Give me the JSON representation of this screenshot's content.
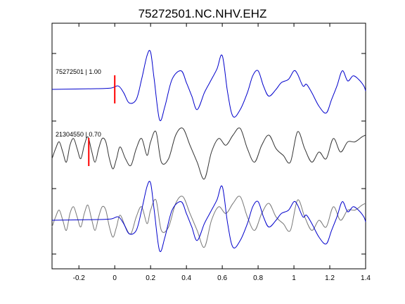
{
  "chart_data": {
    "type": "line",
    "title": "75272501.NC.NHV.EHZ",
    "xlabel": "",
    "ylabel": "",
    "xlim": [
      -0.35,
      1.4
    ],
    "xticks": [
      -0.2,
      0,
      0.2,
      0.4,
      0.6,
      0.8,
      1,
      1.2,
      1.4
    ],
    "xtick_labels": [
      "-0.2",
      "0",
      "0.2",
      "0.4",
      "0.6",
      "0.8",
      "1",
      "1.2",
      "1.4"
    ],
    "grid": false,
    "traces": [
      {
        "label": "75272501 | 1.00",
        "color": "#0000cc",
        "pick_time": 0.0,
        "pick_color": "#ff0000",
        "t": [
          -0.35,
          -0.1,
          -0.02,
          0.02,
          0.05,
          0.08,
          0.12,
          0.15,
          0.18,
          0.2,
          0.22,
          0.25,
          0.28,
          0.32,
          0.37,
          0.4,
          0.43,
          0.46,
          0.5,
          0.53,
          0.57,
          0.6,
          0.63,
          0.66,
          0.7,
          0.74,
          0.77,
          0.8,
          0.83,
          0.86,
          0.9,
          0.93,
          0.97,
          1.0,
          1.02,
          1.05,
          1.07,
          1.1,
          1.14,
          1.18,
          1.21,
          1.24,
          1.27,
          1.3,
          1.33,
          1.36,
          1.39,
          1.4
        ],
        "y": [
          0.0,
          0.02,
          0.04,
          0.1,
          -0.1,
          -0.4,
          -0.3,
          0.3,
          1.0,
          1.1,
          0.3,
          -0.9,
          -0.5,
          0.3,
          0.55,
          0.2,
          -0.2,
          -0.6,
          -0.1,
          0.2,
          0.6,
          1.0,
          -0.1,
          -0.8,
          -0.6,
          -0.1,
          0.4,
          0.55,
          0.1,
          -0.2,
          0.0,
          0.2,
          0.3,
          0.55,
          0.45,
          0.1,
          0.15,
          -0.1,
          -0.5,
          -0.7,
          -0.3,
          0.1,
          0.55,
          0.25,
          0.4,
          0.3,
          0.1,
          -0.05
        ]
      },
      {
        "label": "21304550 | 0.70",
        "color": "#333333",
        "pick_time": -0.145,
        "pick_color": "#ff0000",
        "t": [
          -0.35,
          -0.33,
          -0.31,
          -0.29,
          -0.27,
          -0.25,
          -0.23,
          -0.21,
          -0.19,
          -0.17,
          -0.15,
          -0.13,
          -0.11,
          -0.09,
          -0.07,
          -0.05,
          -0.03,
          -0.01,
          0.01,
          0.03,
          0.06,
          0.09,
          0.12,
          0.15,
          0.18,
          0.2,
          0.23,
          0.26,
          0.3,
          0.34,
          0.38,
          0.42,
          0.46,
          0.5,
          0.54,
          0.58,
          0.62,
          0.66,
          0.7,
          0.74,
          0.78,
          0.82,
          0.86,
          0.9,
          0.94,
          0.98,
          1.02,
          1.06,
          1.1,
          1.14,
          1.18,
          1.22,
          1.26,
          1.3,
          1.34,
          1.38,
          1.4
        ],
        "y": [
          -0.2,
          0.1,
          0.3,
          0.0,
          -0.3,
          0.2,
          0.4,
          0.1,
          -0.2,
          0.2,
          0.45,
          0.05,
          -0.3,
          0.1,
          0.4,
          0.3,
          -0.2,
          -0.5,
          -0.2,
          0.15,
          -0.2,
          -0.4,
          0.1,
          0.4,
          -0.1,
          0.3,
          0.6,
          -0.3,
          -0.2,
          0.5,
          0.7,
          0.2,
          -0.3,
          -0.8,
          0.0,
          0.4,
          0.2,
          0.5,
          0.7,
          0.1,
          -0.3,
          0.2,
          0.5,
          0.1,
          -0.1,
          -0.3,
          0.6,
          0.1,
          -0.3,
          0.0,
          -0.2,
          0.4,
          0.0,
          0.3,
          0.3,
          0.45,
          0.5
        ]
      }
    ],
    "overlay": {
      "description_hidden": true,
      "components": [
        "75272501 | 1.00",
        "21304550 | 0.70"
      ]
    }
  }
}
